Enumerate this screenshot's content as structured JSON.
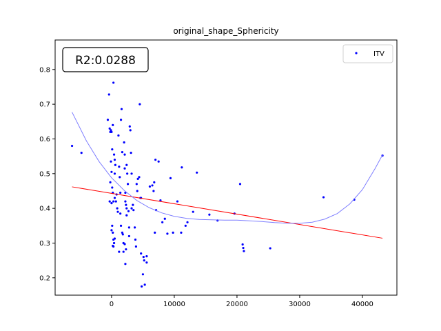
{
  "chart_data": {
    "type": "scatter",
    "title": "original_shape_Sphericity",
    "xlabel": "",
    "ylabel": "",
    "xlim": [
      -9000,
      45500
    ],
    "ylim": [
      0.15,
      0.885
    ],
    "x_ticks": [
      0,
      10000,
      20000,
      30000,
      40000
    ],
    "y_ticks": [
      0.2,
      0.3,
      0.4,
      0.5,
      0.6,
      0.7,
      0.8
    ],
    "annotation": "R2:0.0288",
    "legend": {
      "placement": "top-right",
      "entries": [
        "ITV"
      ]
    },
    "grid": false,
    "colors": {
      "points": "#0000ff",
      "linear_fit": "#ff0000",
      "poly_fit": "#7f7fff"
    },
    "series": [
      {
        "name": "ITV",
        "kind": "scatter",
        "points": [
          [
            -6300,
            0.58
          ],
          [
            -4800,
            0.56
          ],
          [
            -600,
            0.655
          ],
          [
            -400,
            0.728
          ],
          [
            -300,
            0.63
          ],
          [
            -200,
            0.62
          ],
          [
            -100,
            0.625
          ],
          [
            0,
            0.62
          ],
          [
            100,
            0.57
          ],
          [
            200,
            0.64
          ],
          [
            300,
            0.762
          ],
          [
            400,
            0.555
          ],
          [
            500,
            0.54
          ],
          [
            600,
            0.525
          ],
          [
            -100,
            0.535
          ],
          [
            0,
            0.505
          ],
          [
            -200,
            0.475
          ],
          [
            100,
            0.46
          ],
          [
            200,
            0.445
          ],
          [
            -300,
            0.42
          ],
          [
            0,
            0.415
          ],
          [
            300,
            0.42
          ],
          [
            500,
            0.43
          ],
          [
            0,
            0.337
          ],
          [
            100,
            0.35
          ],
          [
            200,
            0.33
          ],
          [
            300,
            0.31
          ],
          [
            400,
            0.3
          ],
          [
            500,
            0.313
          ],
          [
            200,
            0.292
          ],
          [
            300,
            0.29
          ],
          [
            500,
            0.5
          ],
          [
            700,
            0.42
          ],
          [
            800,
            0.44
          ],
          [
            900,
            0.4
          ],
          [
            1000,
            0.39
          ],
          [
            1100,
            0.61
          ],
          [
            1200,
            0.52
          ],
          [
            1300,
            0.49
          ],
          [
            1400,
            0.445
          ],
          [
            1400,
            0.385
          ],
          [
            1500,
            0.35
          ],
          [
            1500,
            0.655
          ],
          [
            1600,
            0.686
          ],
          [
            1700,
            0.562
          ],
          [
            1700,
            0.33
          ],
          [
            1800,
            0.325
          ],
          [
            1900,
            0.3
          ],
          [
            1900,
            0.275
          ],
          [
            1200,
            0.275
          ],
          [
            2000,
            0.59
          ],
          [
            2100,
            0.555
          ],
          [
            2100,
            0.515
          ],
          [
            2200,
            0.445
          ],
          [
            2200,
            0.42
          ],
          [
            2300,
            0.41
          ],
          [
            2400,
            0.4
          ],
          [
            2400,
            0.38
          ],
          [
            2100,
            0.297
          ],
          [
            2200,
            0.24
          ],
          [
            2300,
            0.282
          ],
          [
            2400,
            0.525
          ],
          [
            2500,
            0.5
          ],
          [
            2600,
            0.47
          ],
          [
            2700,
            0.392
          ],
          [
            2800,
            0.345
          ],
          [
            2800,
            0.32
          ],
          [
            2900,
            0.636
          ],
          [
            3000,
            0.625
          ],
          [
            3100,
            0.56
          ],
          [
            3200,
            0.5
          ],
          [
            3200,
            0.4
          ],
          [
            3400,
            0.41
          ],
          [
            3500,
            0.395
          ],
          [
            3700,
            0.345
          ],
          [
            3800,
            0.31
          ],
          [
            3900,
            0.29
          ],
          [
            4000,
            0.47
          ],
          [
            4100,
            0.45
          ],
          [
            4200,
            0.485
          ],
          [
            4400,
            0.49
          ],
          [
            4500,
            0.7
          ],
          [
            4600,
            0.43
          ],
          [
            4700,
            0.43
          ],
          [
            4700,
            0.27
          ],
          [
            4800,
            0.175
          ],
          [
            5000,
            0.21
          ],
          [
            5100,
            0.26
          ],
          [
            5200,
            0.25
          ],
          [
            5300,
            0.18
          ],
          [
            5600,
            0.262
          ],
          [
            5600,
            0.244
          ],
          [
            6100,
            0.463
          ],
          [
            6500,
            0.466
          ],
          [
            6700,
            0.45
          ],
          [
            6800,
            0.475
          ],
          [
            6900,
            0.33
          ],
          [
            7000,
            0.54
          ],
          [
            7100,
            0.395
          ],
          [
            7500,
            0.535
          ],
          [
            7800,
            0.423
          ],
          [
            8100,
            0.36
          ],
          [
            8500,
            0.37
          ],
          [
            8900,
            0.327
          ],
          [
            9400,
            0.487
          ],
          [
            9800,
            0.33
          ],
          [
            10500,
            0.42
          ],
          [
            11100,
            0.33
          ],
          [
            11200,
            0.518
          ],
          [
            11800,
            0.35
          ],
          [
            12100,
            0.36
          ],
          [
            13000,
            0.39
          ],
          [
            13600,
            0.503
          ],
          [
            15600,
            0.382
          ],
          [
            16900,
            0.365
          ],
          [
            19600,
            0.385
          ],
          [
            20500,
            0.47
          ],
          [
            20900,
            0.296
          ],
          [
            21000,
            0.286
          ],
          [
            21100,
            0.277
          ],
          [
            25300,
            0.285
          ],
          [
            33800,
            0.432
          ],
          [
            38700,
            0.425
          ],
          [
            43200,
            0.552
          ]
        ]
      },
      {
        "name": "",
        "kind": "linear_fit",
        "points": [
          [
            -6300,
            0.462
          ],
          [
            43200,
            0.314
          ]
        ]
      },
      {
        "name": "",
        "kind": "poly_fit",
        "points": [
          [
            -6300,
            0.677
          ],
          [
            -4000,
            0.594
          ],
          [
            -2000,
            0.535
          ],
          [
            0,
            0.488
          ],
          [
            2000,
            0.452
          ],
          [
            4000,
            0.423
          ],
          [
            6000,
            0.402
          ],
          [
            8000,
            0.387
          ],
          [
            10000,
            0.377
          ],
          [
            12000,
            0.371
          ],
          [
            14000,
            0.368
          ],
          [
            16000,
            0.367
          ],
          [
            18000,
            0.366
          ],
          [
            20000,
            0.366
          ],
          [
            22000,
            0.364
          ],
          [
            24000,
            0.362
          ],
          [
            26000,
            0.359
          ],
          [
            28000,
            0.357
          ],
          [
            30000,
            0.357
          ],
          [
            32000,
            0.36
          ],
          [
            34000,
            0.369
          ],
          [
            36000,
            0.385
          ],
          [
            38000,
            0.413
          ],
          [
            40000,
            0.454
          ],
          [
            42000,
            0.514
          ],
          [
            43200,
            0.554
          ]
        ]
      }
    ]
  }
}
